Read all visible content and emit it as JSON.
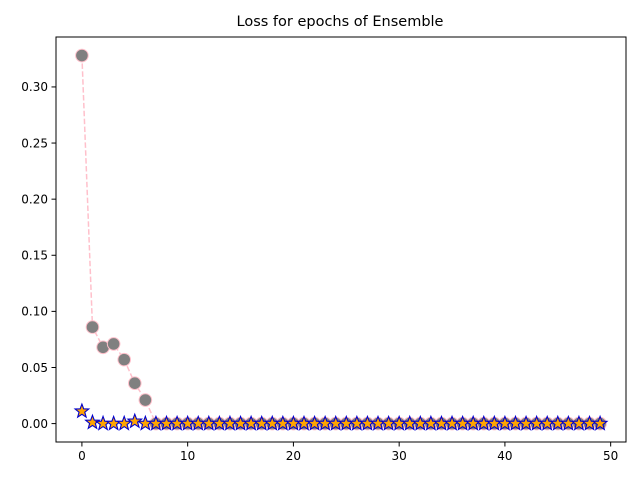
{
  "chart_data": {
    "type": "scatter",
    "title": "Loss for epochs of Ensemble",
    "xlabel": "",
    "ylabel": "",
    "xlim": [
      -2.45,
      51.45
    ],
    "ylim": [
      -0.0164,
      0.3445
    ],
    "xticks": [
      0,
      10,
      20,
      30,
      40,
      50
    ],
    "xtick_labels": [
      "0",
      "10",
      "20",
      "30",
      "40",
      "50"
    ],
    "yticks": [
      0.0,
      0.05,
      0.1,
      0.15,
      0.2,
      0.25,
      0.3
    ],
    "ytick_labels": [
      "0.00",
      "0.05",
      "0.10",
      "0.15",
      "0.20",
      "0.25",
      "0.30"
    ],
    "grid": false,
    "legend": "none",
    "x": [
      0,
      1,
      2,
      3,
      4,
      5,
      6,
      7,
      8,
      9,
      10,
      11,
      12,
      13,
      14,
      15,
      16,
      17,
      18,
      19,
      20,
      21,
      22,
      23,
      24,
      25,
      26,
      27,
      28,
      29,
      30,
      31,
      32,
      33,
      34,
      35,
      36,
      37,
      38,
      39,
      40,
      41,
      42,
      43,
      44,
      45,
      46,
      47,
      48,
      49
    ],
    "series": [
      {
        "marker": "circle",
        "line_style": "dashed",
        "line_color": "#ffc0cb",
        "marker_color": "#808080",
        "marker_edge": "#ffc0cb",
        "values": [
          0.328,
          0.086,
          0.068,
          0.071,
          0.057,
          0.036,
          0.021,
          0,
          0,
          0,
          0,
          0,
          0,
          0,
          0,
          0,
          0,
          0,
          0,
          0,
          0,
          0,
          0,
          0,
          0,
          0,
          0,
          0,
          0,
          0,
          0,
          0,
          0,
          0,
          0,
          0,
          0,
          0,
          0,
          0,
          0,
          0,
          0,
          0,
          0,
          0,
          0,
          0,
          0,
          0
        ]
      },
      {
        "marker": "star",
        "line_style": "none",
        "marker_color": "#ffa500",
        "marker_edge": "#0000cd",
        "values": [
          0.011,
          0.001,
          0,
          0,
          0,
          0.002,
          0,
          0,
          0,
          0,
          0,
          0,
          0,
          0,
          0,
          0,
          0,
          0,
          0,
          0,
          0,
          0,
          0,
          0,
          0,
          0,
          0,
          0,
          0,
          0,
          0,
          0,
          0,
          0,
          0,
          0,
          0,
          0,
          0,
          0,
          0,
          0,
          0,
          0,
          0,
          0,
          0,
          0,
          0,
          0
        ]
      }
    ]
  }
}
